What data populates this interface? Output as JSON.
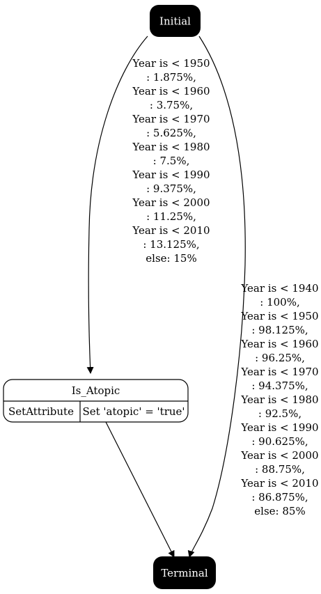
{
  "diagram": {
    "nodes": {
      "initial": {
        "label": "Initial"
      },
      "is_atopic": {
        "title": "Is_Atopic",
        "action_name": "SetAttribute",
        "action_value": "Set 'atopic' = 'true'"
      },
      "terminal": {
        "label": "Terminal"
      }
    },
    "edges": {
      "initial_to_is_atopic": {
        "label_lines": [
          "Year is < 1950",
          ": 1.875%,",
          "Year is < 1960",
          ": 3.75%,",
          "Year is < 1970",
          ": 5.625%,",
          "Year is < 1980",
          ": 7.5%,",
          "Year is < 1990",
          ": 9.375%,",
          "Year is < 2000",
          ": 11.25%,",
          "Year is < 2010",
          ": 13.125%,",
          "else: 15%"
        ]
      },
      "initial_to_terminal": {
        "label_lines": [
          "Year is < 1940",
          ": 100%,",
          "Year is < 1950",
          ": 98.125%,",
          "Year is < 1960",
          ": 96.25%,",
          "Year is < 1970",
          ": 94.375%,",
          "Year is < 1980",
          ": 92.5%,",
          "Year is < 1990",
          ": 90.625%,",
          "Year is < 2000",
          ": 88.75%,",
          "Year is < 2010",
          ": 86.875%,",
          "else: 85%"
        ]
      },
      "is_atopic_to_terminal": {}
    },
    "colors": {
      "terminal_fill": "#000000",
      "terminal_text": "#ffffff",
      "stroke": "#000000",
      "text": "#000000"
    }
  }
}
